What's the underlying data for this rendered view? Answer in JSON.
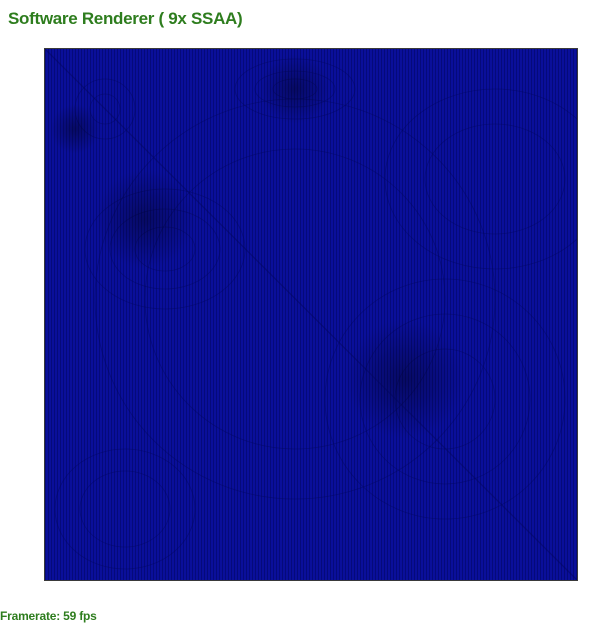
{
  "header": {
    "title": "Software Renderer ( 9x SSAA)"
  },
  "canvas": {
    "background_color": "#0a0f9a",
    "pattern_color": "#000000"
  },
  "footer": {
    "framerate_label": "Framerate: 59 fps"
  },
  "colors": {
    "accent_text": "#2e7d1e"
  }
}
